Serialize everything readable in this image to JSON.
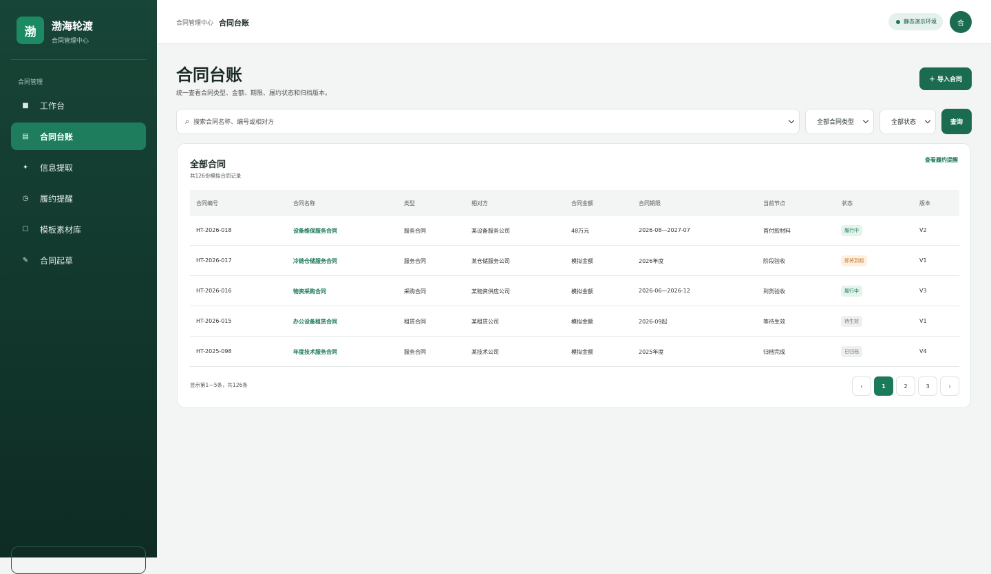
{
  "sidebar": {
    "logo": "渤",
    "brand": "渤海轮渡",
    "brand_sub": "合同管理中心",
    "section": "合同管理",
    "nav": [
      {
        "icon": "■",
        "label": "工作台"
      },
      {
        "icon": "▤",
        "label": "合同台账",
        "active": true
      },
      {
        "icon": "✦",
        "label": "信息提取"
      },
      {
        "icon": "◷",
        "label": "履约提醒"
      },
      {
        "icon": "☐",
        "label": "模板素材库"
      },
      {
        "icon": "✎",
        "label": "合同起草"
      }
    ]
  },
  "topbar": {
    "breadcrumb_parent": "合同管理中心",
    "breadcrumb_current": "合同台账",
    "env_badge": "静态演示环境",
    "avatar": "合"
  },
  "header": {
    "title": "合同台账",
    "subtitle": "统一查看合同类型、金额、期限、履约状态和归档版本。",
    "import_button": "＋ 导入合同"
  },
  "filters": {
    "search_icon": "⌕",
    "search_placeholder": "搜索合同名称、编号或相对方",
    "type_select": "全部合同类型",
    "status_select": "全部状态",
    "query_button": "查询"
  },
  "table": {
    "title": "全部合同",
    "subtitle": "共126份模拟合同记录",
    "link": "查看履约提醒",
    "columns": [
      "合同编号",
      "合同名称",
      "类型",
      "相对方",
      "合同金额",
      "合同期限",
      "当前节点",
      "状态",
      "版本"
    ],
    "rows": [
      {
        "cells": [
          "HT-2026-018",
          "设备维保服务合同",
          "服务合同",
          "某设备服务公司",
          "48万元",
          "2026-08—2027-07",
          "首付款材料",
          "履行中",
          "V2"
        ],
        "status_color": "green"
      },
      {
        "cells": [
          "HT-2026-017",
          "冷链仓储服务合同",
          "服务合同",
          "某仓储服务公司",
          "模拟金额",
          "2026年度",
          "阶段验收",
          "即将到期",
          "V1"
        ],
        "status_color": "orange"
      },
      {
        "cells": [
          "HT-2026-016",
          "物资采购合同",
          "采购合同",
          "某物资供应公司",
          "模拟金额",
          "2026-06—2026-12",
          "到货验收",
          "履行中",
          "V3"
        ],
        "status_color": "green"
      },
      {
        "cells": [
          "HT-2026-015",
          "办公设备租赁合同",
          "租赁合同",
          "某租赁公司",
          "模拟金额",
          "2026-09起",
          "等待生效",
          "待生效",
          "V1"
        ],
        "status_color": "gray"
      },
      {
        "cells": [
          "HT-2025-098",
          "年度技术服务合同",
          "服务合同",
          "某技术公司",
          "模拟金额",
          "2025年度",
          "归档完成",
          "已归档",
          "V4"
        ],
        "status_color": "gray"
      }
    ],
    "footer": "显示第1—5条，共126条",
    "pagination": [
      "‹",
      "1",
      "2",
      "3",
      "›"
    ],
    "current_page": 1
  }
}
